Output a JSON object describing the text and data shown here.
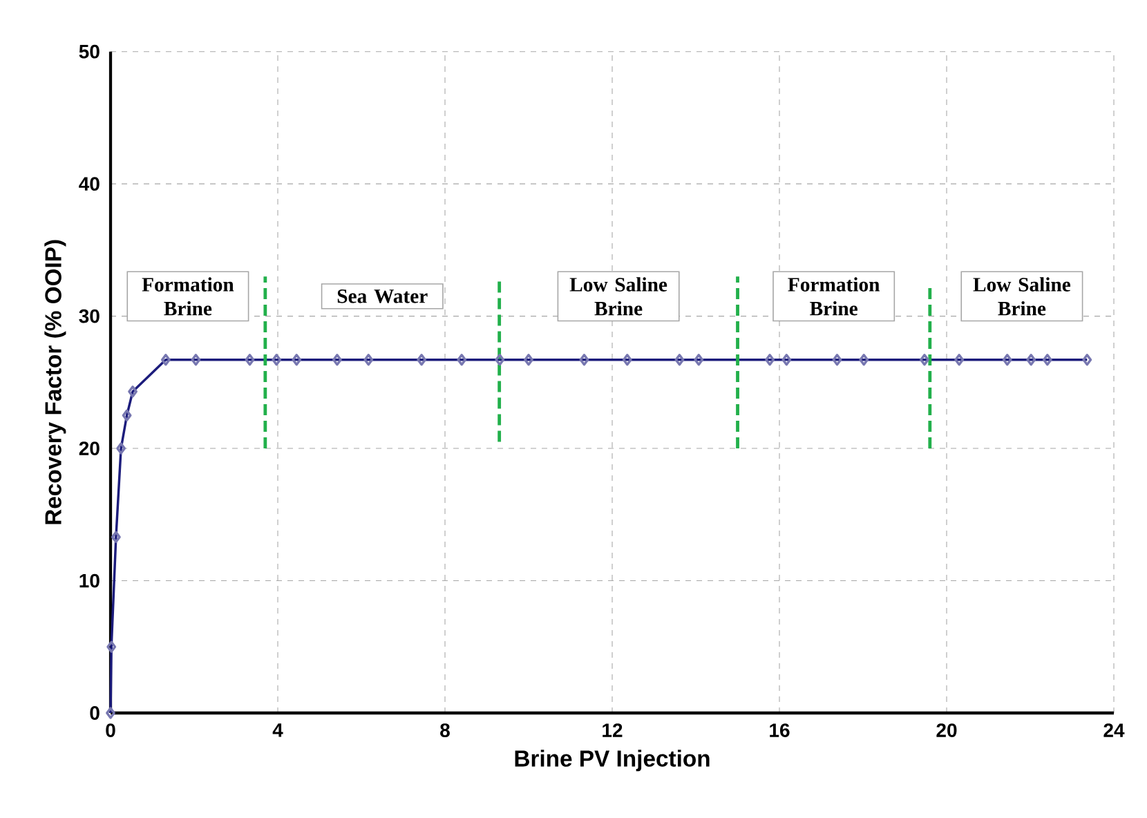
{
  "chart_data": {
    "type": "line",
    "xlabel": "Brine PV Injection",
    "ylabel": "Recovery Factor (%  OOIP)",
    "xlim": [
      0,
      24
    ],
    "xticks": [
      0,
      4,
      8,
      12,
      16,
      20,
      24
    ],
    "ylim": [
      0,
      50
    ],
    "yticks": [
      0,
      10,
      20,
      30,
      40,
      50
    ],
    "grid": true,
    "series": [
      {
        "color": "#1c1c7c",
        "marker": "diamond",
        "line_style": "solid",
        "x": [
          0,
          0.02,
          0.13,
          0.25,
          0.39,
          0.53,
          1.32,
          2.04,
          3.33,
          3.97,
          4.45,
          5.42,
          6.17,
          7.44,
          8.4,
          9.31,
          10.0,
          11.33,
          12.36,
          13.61,
          14.07,
          15.77,
          16.17,
          17.38,
          18.02,
          19.47,
          20.3,
          21.45,
          22.02,
          22.41,
          23.36
        ],
        "values": [
          0,
          5.0,
          13.3,
          20.0,
          22.5,
          24.3,
          26.7,
          26.7,
          26.7,
          26.7,
          26.7,
          26.7,
          26.7,
          26.7,
          26.7,
          26.7,
          26.7,
          26.7,
          26.7,
          26.7,
          26.7,
          26.7,
          26.7,
          26.7,
          26.7,
          26.7,
          26.7,
          26.7,
          26.7,
          26.7,
          26.7
        ]
      },
      {
        "color": "#22b04b",
        "marker": "none",
        "line_style": "dashed",
        "x": [
          3.7,
          3.7
        ],
        "values": [
          20,
          33
        ]
      },
      {
        "color": "#22b04b",
        "marker": "none",
        "line_style": "dashed",
        "x": [
          9.3,
          9.3
        ],
        "values": [
          20.5,
          33
        ]
      },
      {
        "color": "#22b04b",
        "marker": "none",
        "line_style": "dashed",
        "x": [
          15.0,
          15.0
        ],
        "values": [
          20,
          33
        ]
      },
      {
        "color": "#22b04b",
        "marker": "none",
        "line_style": "dashed",
        "x": [
          19.6,
          19.6
        ],
        "values": [
          20,
          32.5
        ]
      }
    ],
    "annotations": [
      "Formation Brine",
      "Sea Water",
      "Low Saline Brine",
      "Formation Brine",
      "Low Saline Brine"
    ]
  }
}
